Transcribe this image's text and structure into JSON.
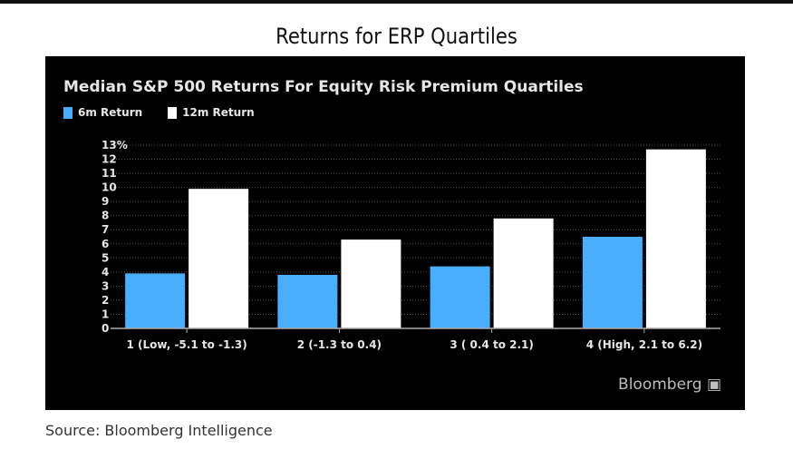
{
  "title": "Returns for ERP Quartiles",
  "source": "Source: Bloomberg Intelligence",
  "brand": "Bloomberg",
  "chart_data": {
    "type": "bar",
    "title": "Median S&P 500 Returns For Equity Risk Premium Quartiles",
    "categories": [
      "1 (Low, -5.1 to -1.3)",
      "2 (-1.3 to 0.4)",
      "3 ( 0.4 to 2.1)",
      "4 (High, 2.1 to 6.2)"
    ],
    "series": [
      {
        "name": "6m Return",
        "color": "#4aaeff",
        "values": [
          3.9,
          3.8,
          4.4,
          6.5
        ]
      },
      {
        "name": "12m Return",
        "color": "#ffffff",
        "values": [
          9.9,
          6.3,
          7.8,
          12.7
        ]
      }
    ],
    "ylim": [
      0,
      13
    ],
    "yticks": [
      "0",
      "1",
      "2",
      "3",
      "4",
      "5",
      "6",
      "7",
      "8",
      "9",
      "10",
      "11",
      "12",
      "13%"
    ],
    "legend": "top-left",
    "grid": true
  }
}
